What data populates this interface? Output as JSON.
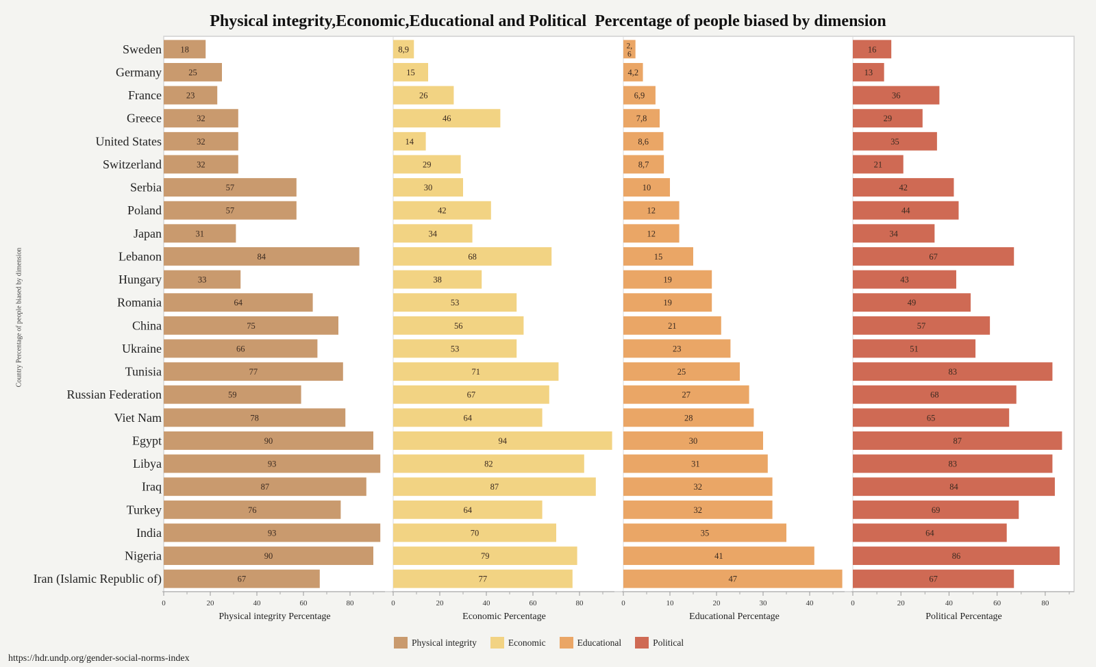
{
  "chart_data": {
    "type": "bar",
    "orientation": "horizontal",
    "title": "Physical integrity,Economic,Educational and Political  Percentage of people biased by dimension",
    "ylabel": "Country Percentage of people biased by dimension",
    "categories": [
      "Sweden",
      "Germany",
      "France",
      "Greece",
      "United States",
      "Switzerland",
      "Serbia",
      "Poland",
      "Japan",
      "Lebanon",
      "Hungary",
      "Romania",
      "China",
      "Ukraine",
      "Tunisia",
      "Russian Federation",
      "Viet Nam",
      "Egypt",
      "Libya",
      "Iraq",
      "Turkey",
      "India",
      "Nigeria",
      "Iran (Islamic Republic of)"
    ],
    "panels": [
      {
        "name": "Physical integrity",
        "xlabel": "Physical integrity Percentage",
        "color": "#c99a6e",
        "xlim": [
          0,
          95
        ],
        "ticks": [
          0,
          20,
          40,
          60,
          80
        ],
        "minor_ticks": [
          10,
          30,
          50,
          70,
          90
        ],
        "values": [
          18,
          25,
          23,
          32,
          32,
          32,
          57,
          57,
          31,
          84,
          33,
          64,
          75,
          66,
          77,
          59,
          78,
          90,
          93,
          87,
          76,
          93,
          90,
          67
        ],
        "labels": [
          "18",
          "25",
          "23",
          "32",
          "32",
          "32",
          "57",
          "57",
          "31",
          "84",
          "33",
          "64",
          "75",
          "66",
          "77",
          "59",
          "78",
          "90",
          "93",
          "87",
          "76",
          "93",
          "90",
          "67"
        ]
      },
      {
        "name": "Economic",
        "xlabel": "Economic Percentage",
        "color": "#f2d383",
        "xlim": [
          0,
          95
        ],
        "ticks": [
          0,
          20,
          40,
          60,
          80
        ],
        "minor_ticks": [
          10,
          30,
          50,
          70,
          90
        ],
        "values": [
          8.9,
          15,
          26,
          46,
          14,
          29,
          30,
          42,
          34,
          68,
          38,
          53,
          56,
          53,
          71,
          67,
          64,
          94,
          82,
          87,
          64,
          70,
          79,
          77
        ],
        "labels": [
          "8,9",
          "15",
          "26",
          "46",
          "14",
          "29",
          "30",
          "42",
          "34",
          "68",
          "38",
          "53",
          "56",
          "53",
          "71",
          "67",
          "64",
          "94",
          "82",
          "87",
          "64",
          "70",
          "79",
          "77"
        ]
      },
      {
        "name": "Educational",
        "xlabel": "Educational Percentage",
        "color": "#eaa666",
        "xlim": [
          0,
          47.5
        ],
        "ticks": [
          0,
          10,
          20,
          30,
          40
        ],
        "minor_ticks": [
          5,
          15,
          25,
          35,
          45
        ],
        "values": [
          2.6,
          4.2,
          6.9,
          7.8,
          8.6,
          8.7,
          10,
          12,
          12,
          15,
          19,
          19,
          21,
          23,
          25,
          27,
          28,
          30,
          31,
          32,
          32,
          35,
          41,
          47
        ],
        "labels": [
          "2,\n6",
          "4,2",
          "6,9",
          "7,8",
          "8,6",
          "8,7",
          "10",
          "12",
          "12",
          "15",
          "19",
          "19",
          "21",
          "23",
          "25",
          "27",
          "28",
          "30",
          "31",
          "32",
          "32",
          "35",
          "41",
          "47"
        ]
      },
      {
        "name": "Political",
        "xlabel": "Political Percentage",
        "color": "#cf6a54",
        "xlim": [
          0,
          92
        ],
        "ticks": [
          0,
          20,
          40,
          60,
          80
        ],
        "minor_ticks": [
          10,
          30,
          50,
          70,
          90
        ],
        "values": [
          16,
          13,
          36,
          29,
          35,
          21,
          42,
          44,
          34,
          67,
          43,
          49,
          57,
          51,
          83,
          68,
          65,
          87,
          83,
          84,
          69,
          64,
          86,
          67
        ],
        "labels": [
          "16",
          "13",
          "36",
          "29",
          "35",
          "21",
          "42",
          "44",
          "34",
          "67",
          "43",
          "49",
          "57",
          "51",
          "83",
          "68",
          "65",
          "87",
          "83",
          "84",
          "69",
          "64",
          "86",
          "67"
        ]
      }
    ],
    "legend": {
      "position": "bottom-center",
      "entries": [
        {
          "label": "Physical integrity",
          "color": "#c99a6e"
        },
        {
          "label": "Economic",
          "color": "#f2d383"
        },
        {
          "label": "Educational",
          "color": "#eaa666"
        },
        {
          "label": "Political",
          "color": "#cf6a54"
        }
      ]
    },
    "grid": false
  },
  "source": "https://hdr.undp.org/gender-social-norms-index"
}
